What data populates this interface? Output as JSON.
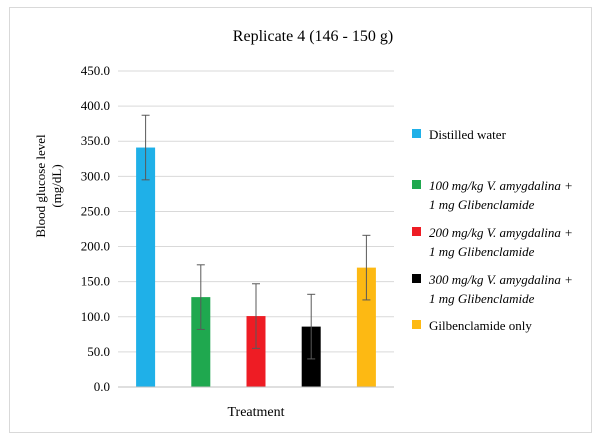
{
  "chart_data": {
    "type": "bar",
    "title": "Replicate 4 (146 - 150 g)",
    "xlabel": "Treatment",
    "ylabel": "Blood glucose level (mg/dL)",
    "ylim": [
      0,
      450
    ],
    "yticks": [
      "0.0",
      "50.0",
      "100.0",
      "150.0",
      "200.0",
      "250.0",
      "300.0",
      "350.0",
      "400.0",
      "450.0"
    ],
    "grid": true,
    "legend_position": "right",
    "series": [
      {
        "name": "Distilled water",
        "value": 341,
        "error": 46,
        "color": "#1fb0e8",
        "italic": false
      },
      {
        "name": "100 mg/kg V. amygdalina + 1 mg Glibenclamide",
        "value": 128,
        "error": 46,
        "color": "#1fa84f",
        "italic": true
      },
      {
        "name": "200 mg/kg V. amygdalina + 1 mg Glibenclamide",
        "value": 101,
        "error": 46,
        "color": "#ee1c24",
        "italic": true
      },
      {
        "name": "300 mg/kg V. amygdalina + 1 mg Glibenclamide",
        "value": 86,
        "error": 46,
        "color": "#000000",
        "italic": true
      },
      {
        "name": "Gilbenclamide only",
        "value": 170,
        "error": 46,
        "color": "#fdb913",
        "italic": false
      }
    ]
  }
}
